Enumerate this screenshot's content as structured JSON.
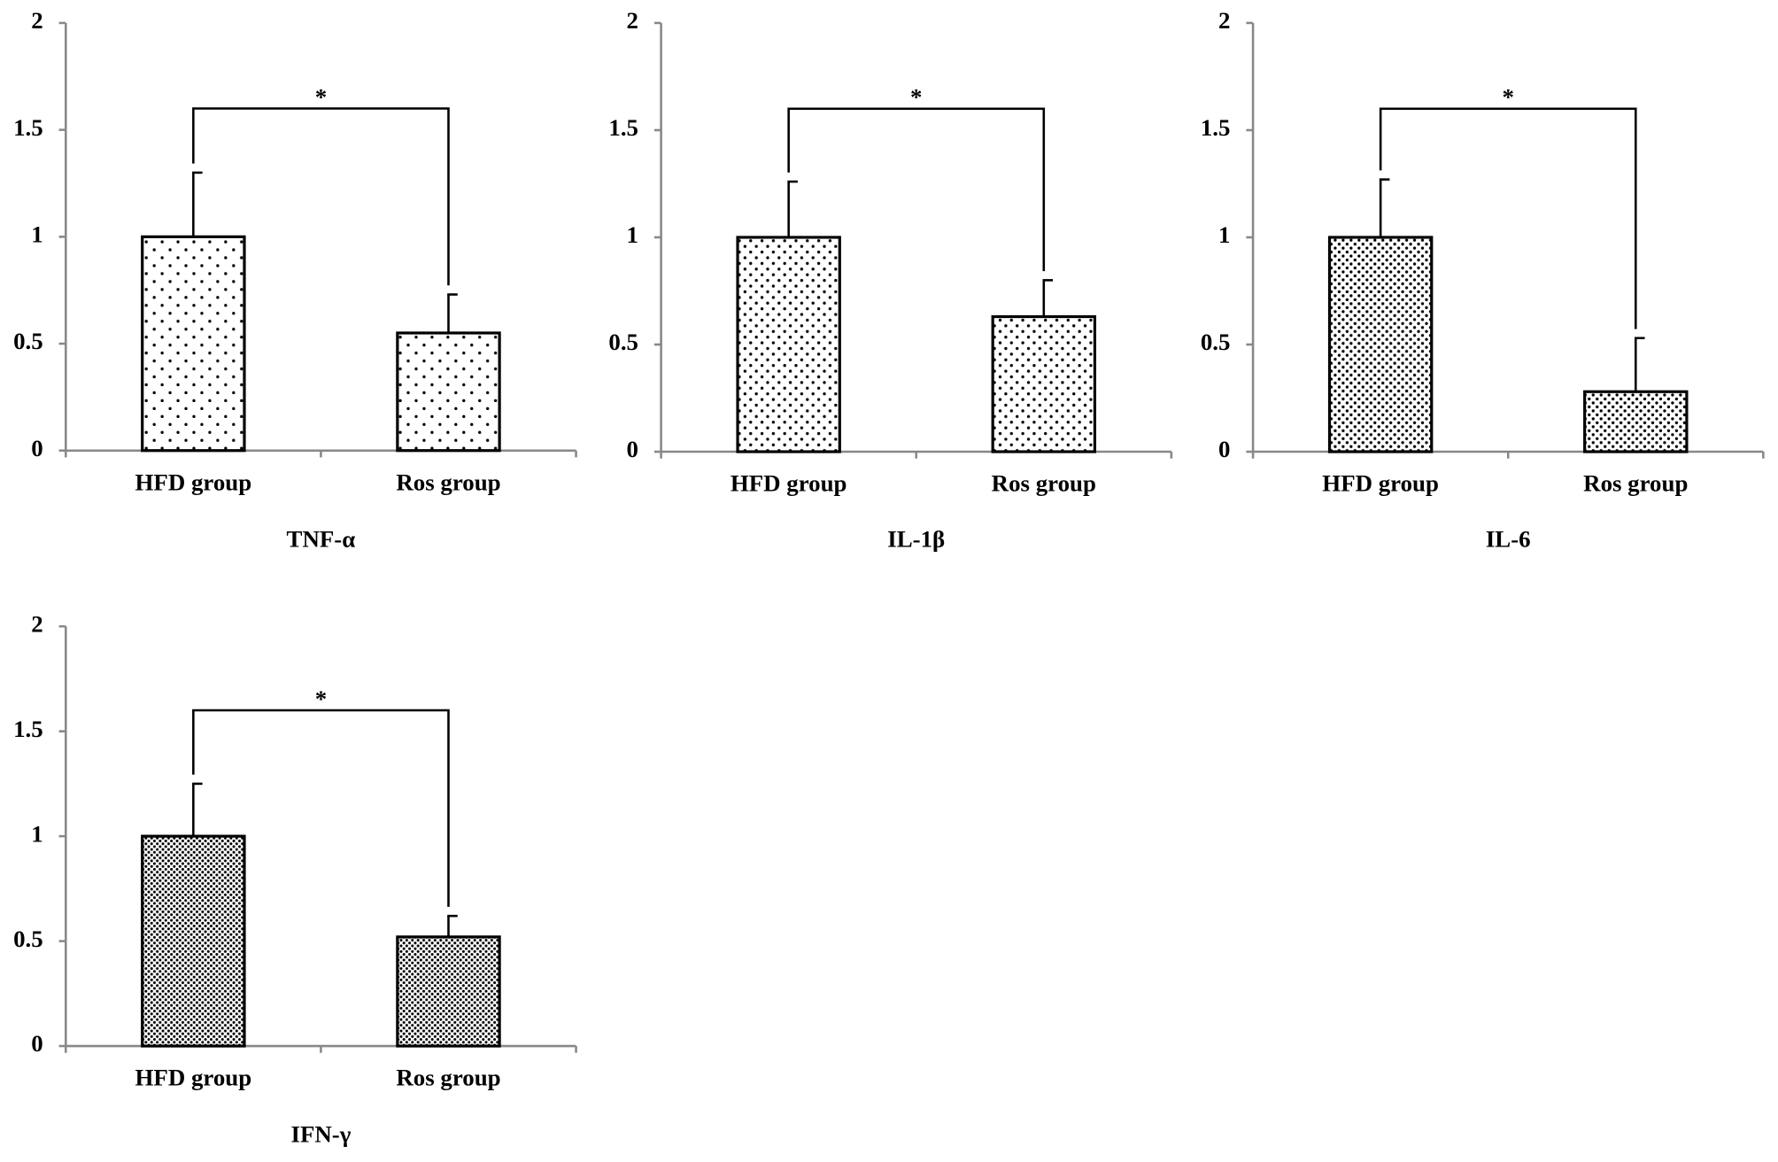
{
  "chart_data": [
    {
      "type": "bar",
      "title": "TNF-α",
      "categories": [
        "HFD group",
        "Ros group"
      ],
      "values": [
        1.0,
        0.55
      ],
      "errors": [
        0.3,
        0.18
      ],
      "color": "#000000",
      "annotation": "*",
      "ylim": [
        0,
        2
      ],
      "yticks": [
        0,
        0.5,
        1,
        1.5,
        2
      ]
    },
    {
      "type": "bar",
      "title": "IL-1β",
      "categories": [
        "HFD group",
        "Ros group"
      ],
      "values": [
        1.0,
        0.63
      ],
      "errors": [
        0.26,
        0.17
      ],
      "color": "#000000",
      "annotation": "*",
      "ylim": [
        0,
        2
      ],
      "yticks": [
        0,
        0.5,
        1,
        1.5,
        2
      ]
    },
    {
      "type": "bar",
      "title": "IL-6",
      "categories": [
        "HFD group",
        "Ros group"
      ],
      "values": [
        1.0,
        0.28
      ],
      "errors": [
        0.27,
        0.25
      ],
      "color": "#000000",
      "annotation": "*",
      "ylim": [
        0,
        2
      ],
      "yticks": [
        0,
        0.5,
        1,
        1.5,
        2
      ]
    },
    {
      "type": "bar",
      "title": "IFN-γ",
      "categories": [
        "HFD group",
        "Ros group"
      ],
      "values": [
        1.0,
        0.52
      ],
      "errors": [
        0.25,
        0.1
      ],
      "color": "#000000",
      "annotation": "*",
      "ylim": [
        0,
        2
      ],
      "yticks": [
        0,
        0.5,
        1,
        1.5,
        2
      ]
    }
  ]
}
